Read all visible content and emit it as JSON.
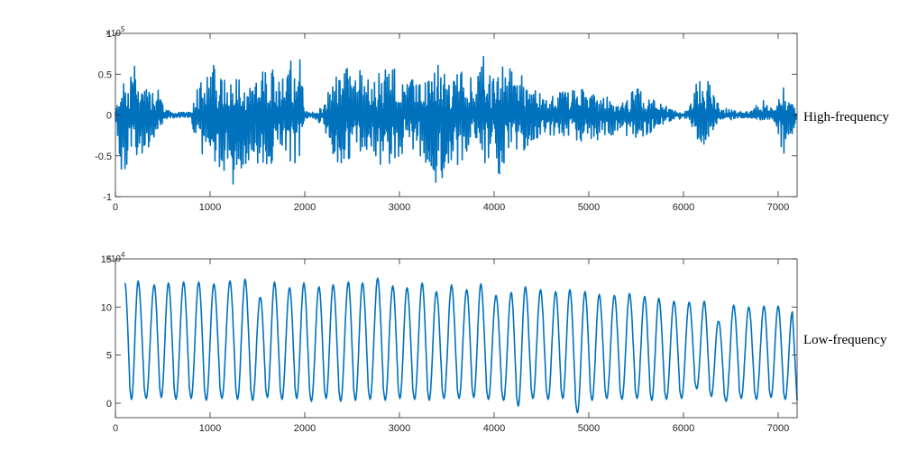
{
  "colors": {
    "line": "#0072BD",
    "axis": "#262626"
  },
  "chart_data": [
    {
      "type": "line",
      "side_label": "High-frequency",
      "exponent_base": "×10",
      "exponent_power": "5",
      "xlim": [
        0,
        7200
      ],
      "ylim": [
        -1,
        1
      ],
      "xticks": [
        "0",
        "1000",
        "2000",
        "3000",
        "4000",
        "5000",
        "6000",
        "7000"
      ],
      "yticks": [
        "-1",
        "-0.5",
        "0",
        "0.5",
        "1"
      ],
      "grid": false,
      "envelope": {
        "x": [
          0,
          60,
          130,
          200,
          260,
          350,
          400,
          450,
          520,
          600,
          800,
          880,
          950,
          1050,
          1150,
          1250,
          1350,
          1450,
          1550,
          1650,
          1750,
          1850,
          1950,
          2000,
          2050,
          2200,
          2300,
          2400,
          2550,
          2700,
          2850,
          2950,
          3100,
          3200,
          3300,
          3400,
          3500,
          3600,
          3700,
          3800,
          3900,
          4000,
          4050,
          4150,
          4300,
          4450,
          4550,
          4700,
          4850,
          5000,
          5100,
          5200,
          5300,
          5400,
          5500,
          5600,
          5700,
          5800,
          5900,
          6050,
          6150,
          6250,
          6300,
          6400,
          6550,
          6700,
          6850,
          6950,
          7050,
          7100,
          7200
        ],
        "upper": [
          0.05,
          0.35,
          0.45,
          0.65,
          0.3,
          0.45,
          0.3,
          0.4,
          0.08,
          0.04,
          0.03,
          0.55,
          0.45,
          0.65,
          0.5,
          0.55,
          0.4,
          0.3,
          0.55,
          0.6,
          0.65,
          0.82,
          0.7,
          0.05,
          0.03,
          0.1,
          0.5,
          0.6,
          0.6,
          0.4,
          0.65,
          0.6,
          0.4,
          0.5,
          0.45,
          0.65,
          0.45,
          0.5,
          0.6,
          0.4,
          0.8,
          0.45,
          0.6,
          0.6,
          0.5,
          0.3,
          0.2,
          0.3,
          0.35,
          0.4,
          0.2,
          0.25,
          0.1,
          0.2,
          0.35,
          0.25,
          0.2,
          0.12,
          0.05,
          0.05,
          0.45,
          0.48,
          0.3,
          0.1,
          0.05,
          0.04,
          0.25,
          0.05,
          0.35,
          0.25,
          0.04
        ],
        "lower": [
          -0.05,
          -0.7,
          -0.8,
          -0.4,
          -0.6,
          -0.4,
          -0.3,
          -0.2,
          -0.06,
          -0.04,
          -0.03,
          -0.6,
          -0.5,
          -0.6,
          -0.7,
          -0.92,
          -0.65,
          -0.55,
          -0.7,
          -0.6,
          -0.5,
          -0.75,
          -0.55,
          -0.05,
          -0.03,
          -0.12,
          -0.6,
          -0.62,
          -0.5,
          -0.4,
          -0.75,
          -0.6,
          -0.4,
          -0.45,
          -0.7,
          -0.85,
          -0.7,
          -0.65,
          -0.5,
          -0.3,
          -0.6,
          -0.55,
          -0.75,
          -0.5,
          -0.45,
          -0.3,
          -0.25,
          -0.3,
          -0.3,
          -0.35,
          -0.3,
          -0.3,
          -0.2,
          -0.3,
          -0.3,
          -0.25,
          -0.2,
          -0.1,
          -0.05,
          -0.05,
          -0.3,
          -0.4,
          -0.2,
          -0.08,
          -0.05,
          -0.04,
          -0.1,
          -0.05,
          -0.52,
          -0.4,
          -0.04
        ]
      }
    },
    {
      "type": "line",
      "side_label": "Low-frequency",
      "exponent_base": "×10",
      "exponent_power": "4",
      "xlim": [
        0,
        7200
      ],
      "ylim": [
        -1.5,
        15
      ],
      "xticks": [
        "0",
        "1000",
        "2000",
        "3000",
        "4000",
        "5000",
        "6000",
        "7000"
      ],
      "yticks": [
        "0",
        "5",
        "10",
        "15"
      ],
      "grid": false,
      "peaks": {
        "x": [
          100,
          240,
          410,
          560,
          720,
          880,
          1040,
          1210,
          1370,
          1530,
          1680,
          1840,
          1990,
          2150,
          2300,
          2460,
          2610,
          2770,
          2930,
          3080,
          3240,
          3390,
          3550,
          3710,
          3860,
          4020,
          4180,
          4330,
          4490,
          4650,
          4800,
          4960,
          5110,
          5270,
          5430,
          5590,
          5740,
          5900,
          6060,
          6220,
          6370,
          6530,
          6690,
          6850,
          7000,
          7150
        ],
        "max": [
          12.5,
          12.7,
          12.3,
          12.5,
          12.6,
          12.6,
          12.4,
          12.7,
          12.9,
          11,
          12.6,
          12,
          12.5,
          12.1,
          12.3,
          12.6,
          12.5,
          13,
          12.2,
          12,
          12.5,
          11.6,
          12.3,
          11.8,
          12.4,
          11.2,
          11.5,
          12.1,
          11.8,
          11.6,
          11.8,
          11.6,
          11.3,
          11.2,
          11.4,
          11.1,
          10.9,
          10.6,
          10.5,
          10.6,
          8.5,
          10.2,
          10,
          10.1,
          10.1,
          9.5
        ],
        "min": [
          0.4,
          0.5,
          0.6,
          0.4,
          0.5,
          0.3,
          0.5,
          0.4,
          0.3,
          0.6,
          0.4,
          0.5,
          0.2,
          0.5,
          0.2,
          0.3,
          0.4,
          0.3,
          0.5,
          0.4,
          0.3,
          0.5,
          0.5,
          0.6,
          0.4,
          0.3,
          -0.3,
          0.5,
          0.4,
          0.5,
          -1.0,
          0.3,
          0.5,
          0.4,
          0.5,
          0.3,
          0.4,
          0.5,
          1.5,
          0.7,
          0.2,
          0.5,
          0.4,
          0.6,
          0.4,
          0.4
        ]
      }
    }
  ]
}
